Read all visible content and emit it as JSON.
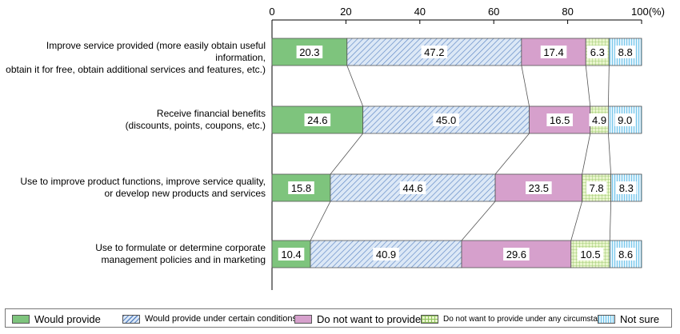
{
  "chart_data": {
    "type": "bar",
    "orientation": "horizontal",
    "stacked": true,
    "categories": [
      "Improve service provided (more easily obtain useful information,\nobtain it for free, obtain additional services and features, etc.)",
      "Receive financial benefits\n(discounts, points, coupons, etc.)",
      "Use to improve product functions, improve service quality,\nor develop new products and services",
      "Use to formulate or determine corporate\nmanagement policies and in marketing"
    ],
    "series": [
      {
        "name": "Would provide",
        "values": [
          20.3,
          24.6,
          15.8,
          10.4
        ],
        "color": "#7ec47d",
        "pattern": "solid"
      },
      {
        "name": "Would provide under certain conditions",
        "values": [
          47.2,
          45.0,
          44.6,
          40.9
        ],
        "color": "#dce8f6",
        "pattern": "diagonal-hatch"
      },
      {
        "name": "Do not want to provide",
        "values": [
          17.4,
          16.5,
          23.5,
          29.6
        ],
        "color": "#d6a0cc",
        "pattern": "solid"
      },
      {
        "name": "Do not want to provide under any circumstances",
        "values": [
          6.3,
          4.9,
          7.8,
          10.5
        ],
        "color": "#e9f5cd",
        "pattern": "grid"
      },
      {
        "name": "Not sure",
        "values": [
          8.8,
          9.0,
          8.3,
          8.6
        ],
        "color": "#dff1fb",
        "pattern": "vertical-lines"
      }
    ],
    "value_labels": [
      [
        "20.3",
        "47.2",
        "17.4",
        "6.3",
        "8.8"
      ],
      [
        "24.6",
        "45.0",
        "16.5",
        "4.9",
        "9.0"
      ],
      [
        "15.8",
        "44.6",
        "23.5",
        "7.8",
        "8.3"
      ],
      [
        "10.4",
        "40.9",
        "29.6",
        "10.5",
        "8.6"
      ]
    ],
    "x_ticks": [
      "0",
      "20",
      "40",
      "60",
      "80",
      "100(%)"
    ],
    "xlim": [
      0,
      100
    ],
    "legend_position": "bottom",
    "grid": false,
    "connector_lines": true
  }
}
